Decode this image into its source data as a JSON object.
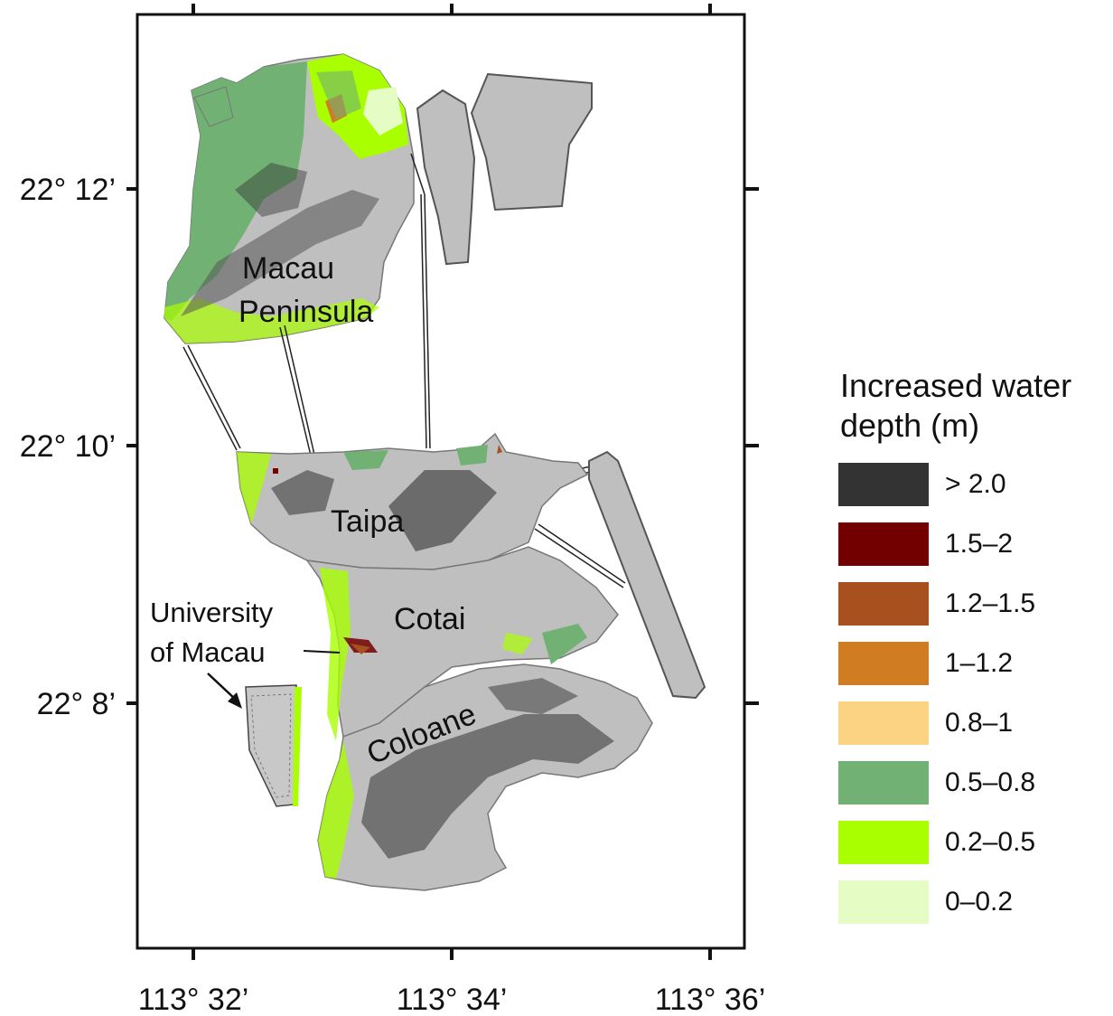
{
  "map": {
    "x_ticks": [
      "113° 32’",
      "113° 34’",
      "113° 36’"
    ],
    "y_ticks": [
      "22° 12’",
      "22° 10’",
      "22° 8’"
    ],
    "places": {
      "macau_1": "Macau",
      "macau_2": "Peninsula",
      "taipa": "Taipa",
      "cotai": "Cotai",
      "um_1": "University",
      "um_2": "of Macau",
      "coloane": "Coloane"
    }
  },
  "legend": {
    "title": "Increased water\ndepth (m)",
    "items": [
      {
        "label": "> 2.0",
        "color": "#333333"
      },
      {
        "label": "1.5–2",
        "color": "#730000"
      },
      {
        "label": "1.2–1.5",
        "color": "#a8501e"
      },
      {
        "label": "1–1.2",
        "color": "#d07c22"
      },
      {
        "label": "0.8–1",
        "color": "#fcd283"
      },
      {
        "label": "0.5–0.8",
        "color": "#72b174"
      },
      {
        "label": "0.2–0.5",
        "color": "#a9ff00"
      },
      {
        "label": "0–0.2",
        "color": "#e5fcc4"
      }
    ]
  }
}
